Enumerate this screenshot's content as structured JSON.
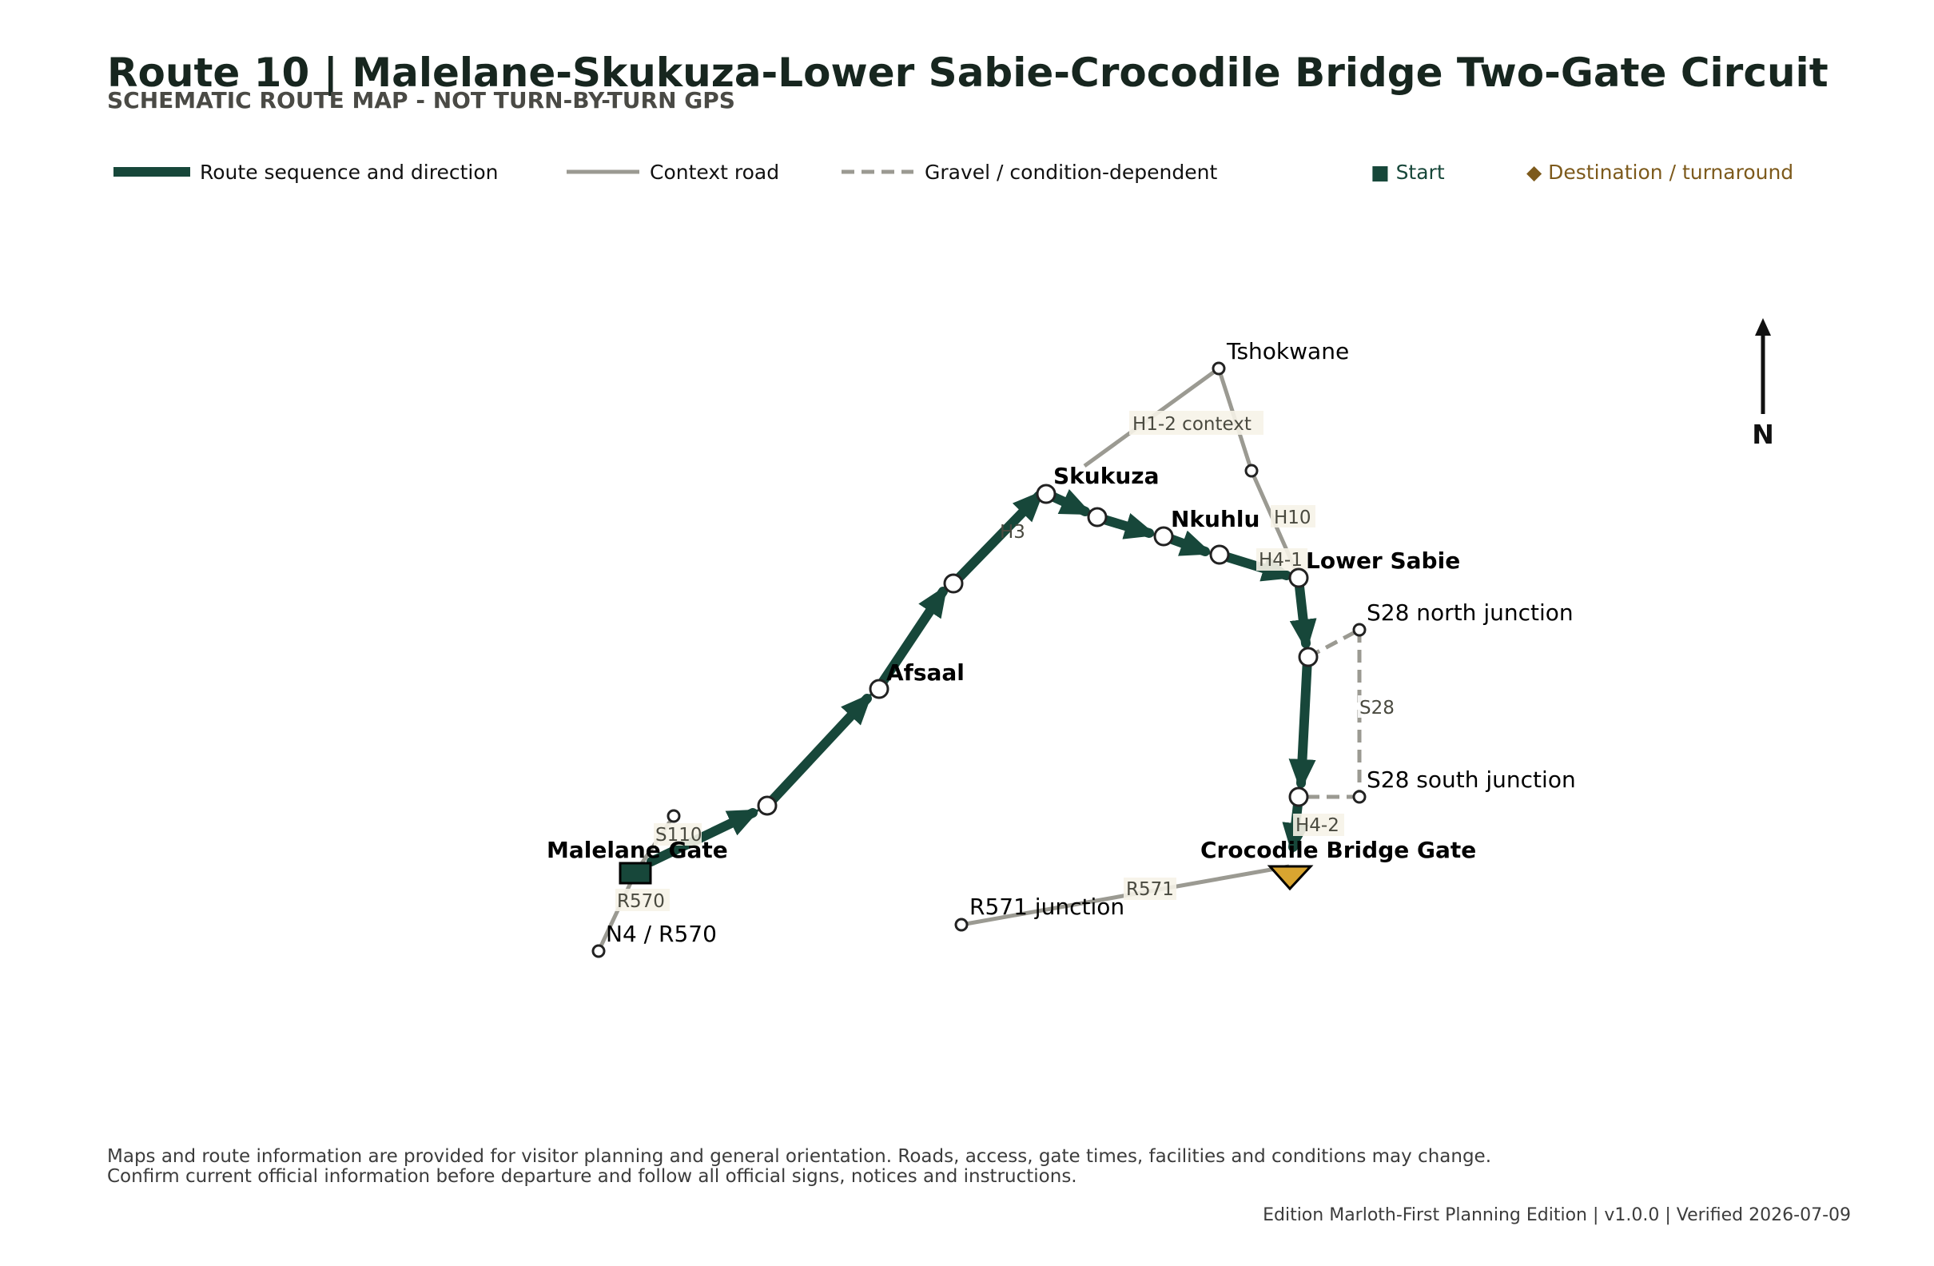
{
  "title": "Route 10 | Malelane-Skukuza-Lower Sabie-Crocodile Bridge Two-Gate Circuit",
  "subtitle": "SCHEMATIC ROUTE MAP - NOT TURN-BY-TURN GPS",
  "legend": {
    "route": "Route sequence and direction",
    "context": "Context road",
    "gravel": "Gravel / condition-dependent",
    "start": "■ Start",
    "destination": "◆ Destination / turnaround"
  },
  "colors": {
    "route": "#17473a",
    "context": "#9b9a92",
    "start_fill": "#17473a",
    "start_text": "#17473a",
    "destination_fill": "#d9a530",
    "destination_text": "#7d5a1c"
  },
  "places": {
    "malelane_gate": "Malelane Gate",
    "afsaal": "Afsaal",
    "skukuza": "Skukuza",
    "nkuhlu": "Nkuhlu",
    "lower_sabie": "Lower Sabie",
    "crocodile_bridge_gate": "Crocodile Bridge Gate",
    "tshokwane": "Tshokwane",
    "s28_north": "S28 north junction",
    "s28_south": "S28 south junction",
    "r571_junction": "R571 junction",
    "n4_r570": "N4 / R570"
  },
  "roads": {
    "s110": "S110",
    "r570": "R570",
    "h3": "H3",
    "h1_2": "H1-2 context",
    "h10": "H10",
    "h4_1": "H4-1",
    "s28": "S28",
    "h4_2": "H4-2",
    "r571": "R571"
  },
  "north": "N",
  "footer": {
    "disclaimer_line1": "Maps and route information are provided for visitor planning and general orientation. Roads, access, gate times, facilities and conditions may change.",
    "disclaimer_line2": "Confirm current official information before departure and follow all official signs, notices and instructions.",
    "edition": "Edition Marloth-First Planning Edition | v1.0.0 | Verified 2026-07-09"
  }
}
